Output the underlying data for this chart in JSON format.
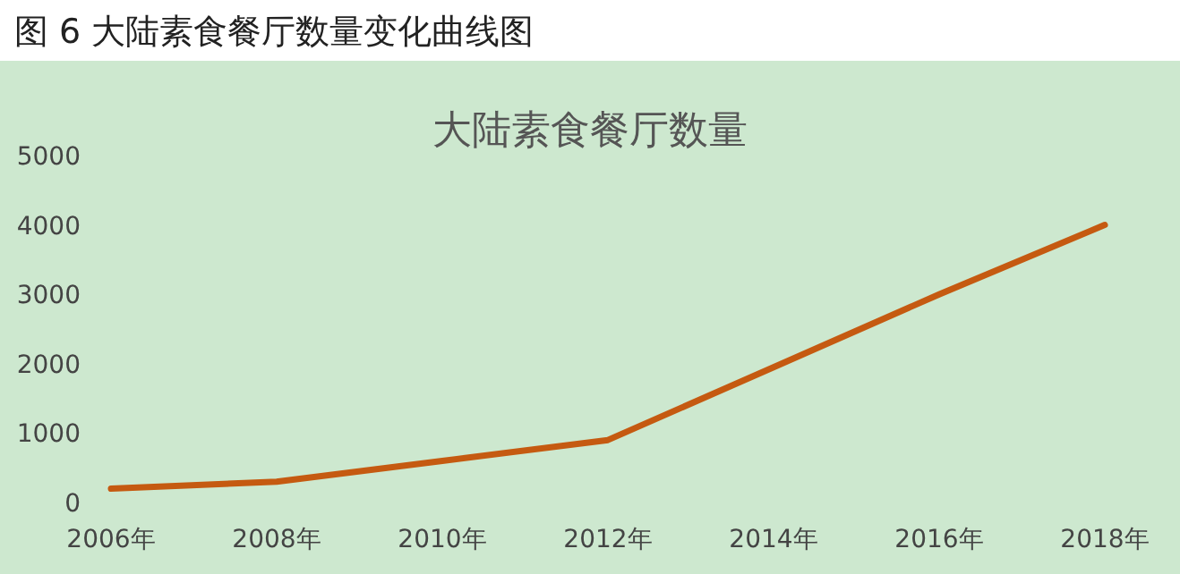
{
  "chart_data": {
    "type": "line",
    "title": "大陆素食餐厅数量",
    "annotations": [
      "图 6  大陆素食餐厅数量变化曲线图"
    ],
    "categories": [
      "2006年",
      "2008年",
      "2010年",
      "2012年",
      "2014年",
      "2016年",
      "2018年"
    ],
    "series": [
      {
        "color": "#c55a11",
        "values": [
          200,
          300,
          600,
          900,
          1950,
          3000,
          4000
        ]
      }
    ],
    "ylim": [
      0,
      5000
    ],
    "yticks": [
      0,
      1000,
      2000,
      3000,
      4000,
      5000
    ],
    "grid": false
  }
}
